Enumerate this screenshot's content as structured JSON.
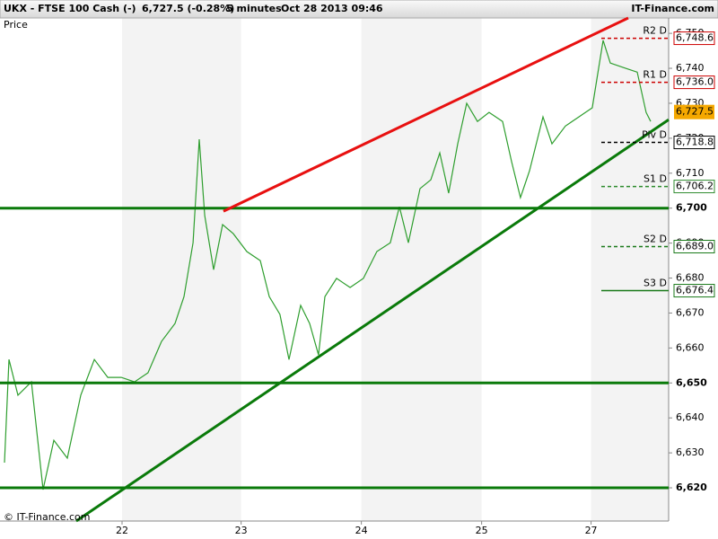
{
  "header": {
    "symbol": "UKX - FTSE 100 Cash (-)",
    "quote": "6,727.5 (-0.28%)",
    "interval": "5 minutes",
    "datetime": "Oct 28 2013 09:46",
    "brand": "IT-Finance.com"
  },
  "footer": "© IT-Finance.com",
  "chart_data": {
    "type": "line",
    "x": [
      -97.8,
      -94.0,
      -86.6,
      -75.4,
      -65.7,
      -56.7,
      -45.5,
      -34.3,
      -23.1,
      -11.9,
      -0.7,
      10.4,
      21.6,
      32.8,
      44.0,
      51.5,
      59.0,
      64.2,
      68.7,
      76.1,
      83.6,
      92.5,
      103.7,
      114.9,
      122.4,
      131.3,
      138.8,
      148.5,
      156.0,
      163.4,
      168.7,
      178.4,
      189.6,
      200.7,
      211.9,
      223.1,
      230.6,
      238.1,
      247.8,
      256.7,
      264.2,
      271.6,
      279.1,
      286.6,
      295.5,
      305.2,
      316.4,
      323.9,
      331.3,
      338.8,
      350.0,
      357.5,
      368.7,
      379.9,
      391.0,
      400.0,
      406.0,
      417.2,
      428.4,
      435.8,
      439.6
    ],
    "series": [
      {
        "name": "Price",
        "color": "#2e9e2e",
        "values": [
          6627.2,
          6656.7,
          6646.5,
          6650.3,
          6619.5,
          6633.6,
          6628.5,
          6646.5,
          6656.7,
          6651.6,
          6651.6,
          6650.3,
          6652.9,
          6661.9,
          6667.0,
          6674.7,
          6690.1,
          6719.7,
          6697.9,
          6682.4,
          6695.3,
          6692.7,
          6687.6,
          6685.0,
          6674.7,
          6669.6,
          6656.7,
          6672.2,
          6667.0,
          6658.0,
          6674.7,
          6679.9,
          6677.3,
          6679.9,
          6687.6,
          6690.1,
          6700.4,
          6690.1,
          6705.6,
          6708.1,
          6715.8,
          6704.3,
          6718.4,
          6730.0,
          6724.8,
          6727.4,
          6724.8,
          6713.3,
          6703.0,
          6710.7,
          6726.1,
          6718.4,
          6723.5,
          6726.1,
          6728.7,
          6748.0,
          6741.5,
          6740.2,
          6738.9,
          6727.4,
          6724.8
        ]
      }
    ],
    "xlim": [
      -101.5,
      454.5
    ],
    "xticks": [
      {
        "value": 0,
        "label": "22"
      },
      {
        "value": 99,
        "label": "23"
      },
      {
        "value": 199,
        "label": "24"
      },
      {
        "value": 299,
        "label": "25"
      },
      {
        "value": 390,
        "label": "27"
      }
    ],
    "ylim": [
      6610.5,
      6754.4
    ],
    "yticks": [
      {
        "value": 6620,
        "label": "6,620"
      },
      {
        "value": 6630,
        "label": "6,630"
      },
      {
        "value": 6640,
        "label": "6,640"
      },
      {
        "value": 6650,
        "label": "6,650"
      },
      {
        "value": 6660,
        "label": "6,660"
      },
      {
        "value": 6670,
        "label": "6,670"
      },
      {
        "value": 6680,
        "label": "6,680"
      },
      {
        "value": 6690,
        "label": "6,690"
      },
      {
        "value": 6700,
        "label": "6,700"
      },
      {
        "value": 6710,
        "label": "6,710"
      },
      {
        "value": 6720,
        "label": "6,720"
      },
      {
        "value": 6730,
        "label": "6,730"
      },
      {
        "value": 6740,
        "label": "6,740"
      },
      {
        "value": 6750,
        "label": "6,750"
      }
    ],
    "trendlines": [
      {
        "color": "#e81010",
        "x": [
          84.3,
          420.9
        ],
        "y": [
          6699.1,
          6754.4
        ]
      },
      {
        "color": "#0a7a0a",
        "x": [
          -38.1,
          454.5
        ],
        "y": [
          6610.5,
          6725.3
        ]
      }
    ],
    "hlines": [
      {
        "value": 6700,
        "color": "#0a7a0a"
      },
      {
        "value": 6650,
        "color": "#0a7a0a"
      },
      {
        "value": 6620,
        "color": "#0a7a0a"
      }
    ],
    "levels": [
      {
        "name": "R2 D",
        "value": 6748.6,
        "label": "6,748.6",
        "color": "#cc0000",
        "style": "dashed"
      },
      {
        "name": "R1 D",
        "value": 6736.0,
        "label": "6,736.0",
        "color": "#cc0000",
        "style": "dashed"
      },
      {
        "name": "Piv D",
        "value": 6718.8,
        "label": "6,718.8",
        "color": "#000000",
        "style": "dashed"
      },
      {
        "name": "S1 D",
        "value": 6706.2,
        "label": "6,706.2",
        "color": "#2e8b2e",
        "style": "dashed"
      },
      {
        "name": "S2 D",
        "value": 6689.0,
        "label": "6,689.0",
        "color": "#1a7a1a",
        "style": "dashed"
      },
      {
        "name": "S3 D",
        "value": 6676.4,
        "label": "6,676.4",
        "color": "#1a7a1a",
        "style": "solid"
      }
    ],
    "last": {
      "value": 6727.5,
      "label": "6,727.5",
      "color": "#f5a800"
    }
  }
}
